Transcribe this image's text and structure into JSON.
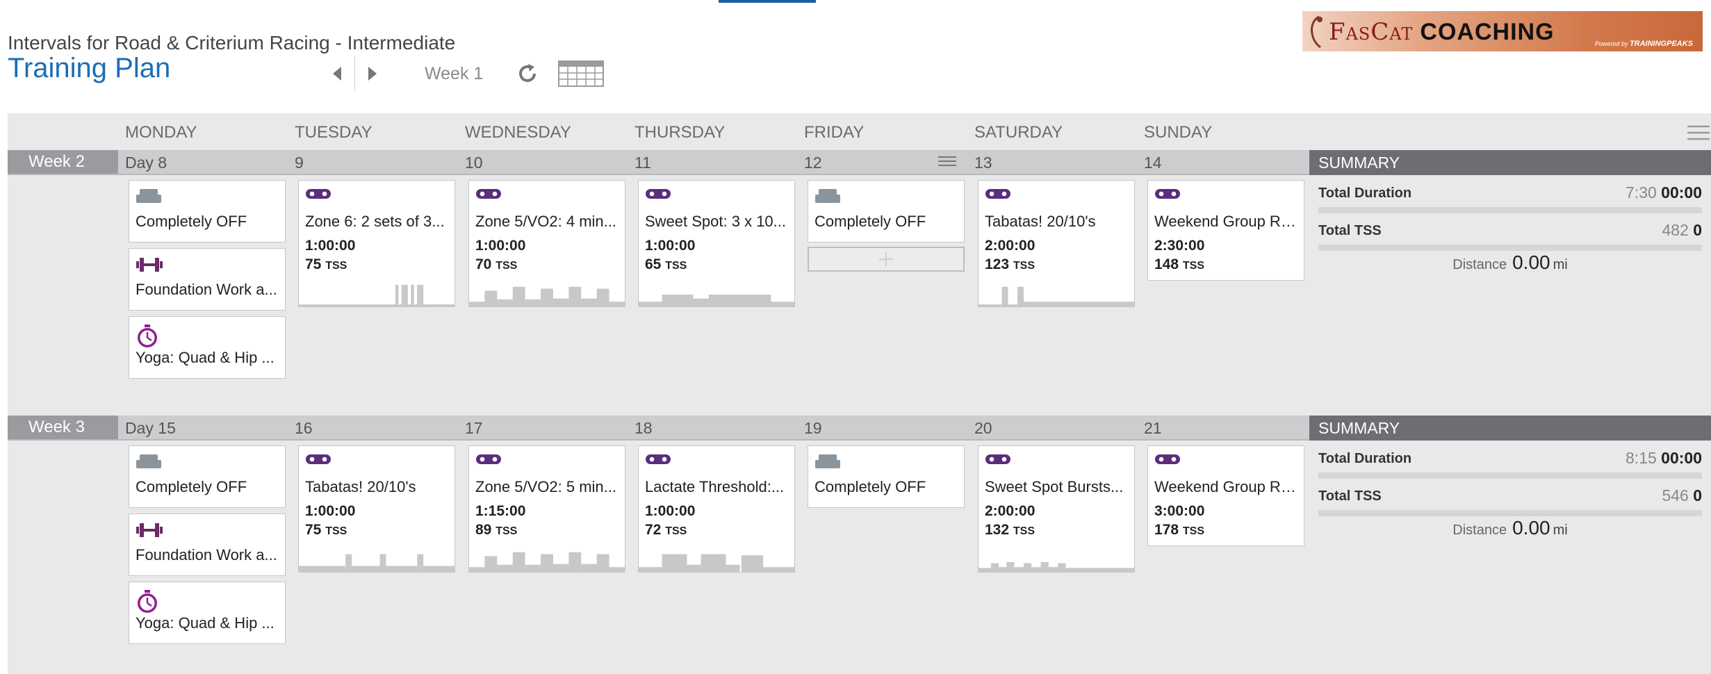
{
  "header": {
    "subtitle": "Intervals for Road & Criterium Racing - Intermediate",
    "title": "Training Plan",
    "week_label": "Week 1"
  },
  "logo": {
    "name_part1": "FasCat",
    "name_part2": "COACHING",
    "powered_prefix": "Powered by",
    "powered_brand": "TRAININGPEAKS"
  },
  "day_headers": [
    "MONDAY",
    "TUESDAY",
    "WEDNESDAY",
    "THURSDAY",
    "FRIDAY",
    "SATURDAY",
    "SUNDAY"
  ],
  "colors": {
    "accent_blue": "#1c6db5",
    "bike_purple": "#5b2d7d",
    "strength_purple": "#6b2b66",
    "yoga_magenta": "#8e1e91",
    "off_gray": "#8a949c"
  },
  "weeks": [
    {
      "label": "Week 2",
      "days": [
        "Day 8",
        "9",
        "10",
        "11",
        "12",
        "13",
        "14"
      ],
      "summary": {
        "header": "SUMMARY",
        "duration_label": "Total Duration",
        "duration_planned": "7:30",
        "duration_completed": "00:00",
        "tss_label": "Total TSS",
        "tss_planned": "482",
        "tss_completed": "0",
        "distance_label": "Distance",
        "distance_value": "0.00",
        "distance_unit": "mi"
      },
      "workouts": [
        {
          "day": 0,
          "slot": 0,
          "type": "off",
          "icon": "couch-icon",
          "title": "Completely OFF"
        },
        {
          "day": 0,
          "slot": 1,
          "type": "strength",
          "icon": "dumbbell-icon",
          "title": "Foundation Work a..."
        },
        {
          "day": 0,
          "slot": 2,
          "type": "yoga",
          "icon": "stopwatch-icon",
          "title": "Yoga: Quad & Hip ..."
        },
        {
          "day": 1,
          "slot": 0,
          "type": "bike",
          "icon": "bike-icon",
          "title": "Zone 6: 2 sets of 3...",
          "duration": "1:00:00",
          "tss": "75",
          "profile": "spiky"
        },
        {
          "day": 2,
          "slot": 0,
          "type": "bike",
          "icon": "bike-icon",
          "title": "Zone 5/VO2: 4 min...",
          "duration": "1:00:00",
          "tss": "70",
          "profile": "blocks"
        },
        {
          "day": 3,
          "slot": 0,
          "type": "bike",
          "icon": "bike-icon",
          "title": "Sweet Spot: 3 x 10...",
          "duration": "1:00:00",
          "tss": "65",
          "profile": "sweet"
        },
        {
          "day": 4,
          "slot": 0,
          "type": "off",
          "icon": "couch-icon",
          "title": "Completely OFF"
        },
        {
          "day": 5,
          "slot": 0,
          "type": "bike",
          "icon": "bike-icon",
          "title": "Tabatas! 20/10's",
          "duration": "2:00:00",
          "tss": "123",
          "profile": "tabata_long"
        },
        {
          "day": 6,
          "slot": 0,
          "type": "bike",
          "icon": "bike-icon",
          "title": "Weekend Group Ride",
          "duration": "2:30:00",
          "tss": "148"
        }
      ]
    },
    {
      "label": "Week 3",
      "days": [
        "Day 15",
        "16",
        "17",
        "18",
        "19",
        "20",
        "21"
      ],
      "summary": {
        "header": "SUMMARY",
        "duration_label": "Total Duration",
        "duration_planned": "8:15",
        "duration_completed": "00:00",
        "tss_label": "Total TSS",
        "tss_planned": "546",
        "tss_completed": "0",
        "distance_label": "Distance",
        "distance_value": "0.00",
        "distance_unit": "mi"
      },
      "workouts": [
        {
          "day": 0,
          "slot": 0,
          "type": "off",
          "icon": "couch-icon",
          "title": "Completely OFF"
        },
        {
          "day": 0,
          "slot": 1,
          "type": "strength",
          "icon": "dumbbell-icon",
          "title": "Foundation Work a..."
        },
        {
          "day": 0,
          "slot": 2,
          "type": "yoga",
          "icon": "stopwatch-icon",
          "title": "Yoga: Quad & Hip ..."
        },
        {
          "day": 1,
          "slot": 0,
          "type": "bike",
          "icon": "bike-icon",
          "title": "Tabatas! 20/10's",
          "duration": "1:00:00",
          "tss": "75",
          "profile": "tabata"
        },
        {
          "day": 2,
          "slot": 0,
          "type": "bike",
          "icon": "bike-icon",
          "title": "Zone 5/VO2: 5 min...",
          "duration": "1:15:00",
          "tss": "89",
          "profile": "blocks"
        },
        {
          "day": 3,
          "slot": 0,
          "type": "bike",
          "icon": "bike-icon",
          "title": "Lactate Threshold:...",
          "duration": "1:00:00",
          "tss": "72",
          "profile": "threshold"
        },
        {
          "day": 4,
          "slot": 0,
          "type": "off",
          "icon": "couch-icon",
          "title": "Completely OFF"
        },
        {
          "day": 5,
          "slot": 0,
          "type": "bike",
          "icon": "bike-icon",
          "title": "Sweet Spot Bursts...",
          "duration": "2:00:00",
          "tss": "132",
          "profile": "bursts"
        },
        {
          "day": 6,
          "slot": 0,
          "type": "bike",
          "icon": "bike-icon",
          "title": "Weekend Group Ride",
          "duration": "3:00:00",
          "tss": "178"
        }
      ]
    }
  ],
  "tss_unit": "TSS"
}
